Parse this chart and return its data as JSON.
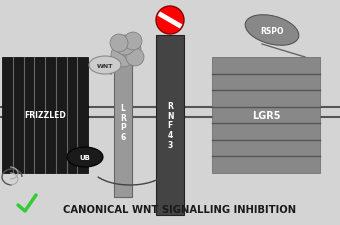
{
  "bg_color": "#d4d4d4",
  "title_text": "CANONICAL WNT SIGNALLING INHIBITION",
  "title_fontsize": 7.2,
  "wnt_text": "WNT",
  "lrp6_text": "L\nR\nP\n6",
  "rnf43_text": "R\nN\nF\n4\n3",
  "lgr5_text": "LGR5",
  "frizzled_text": "FRIZZLED",
  "ub_text": "UB",
  "rspo_text": "RSPO",
  "frizzled_color": "#1a1a1a",
  "lrp6_color": "#888888",
  "rnf43_color": "#444444",
  "lgr5_color": "#888888"
}
